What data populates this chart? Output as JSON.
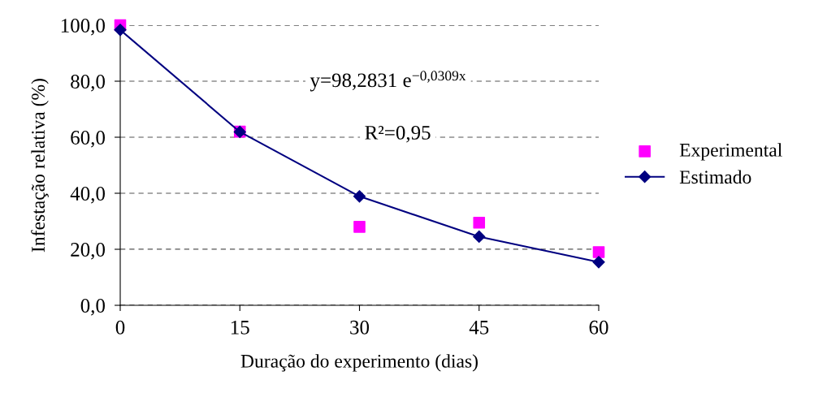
{
  "chart_data": {
    "type": "scatter",
    "xlabel": "Duração do experimento (dias)",
    "ylabel": "Infestação relativa (%)",
    "x": [
      0,
      15,
      30,
      45,
      60
    ],
    "series": [
      {
        "name": "Experimental",
        "color": "#ff00ff",
        "marker": "square",
        "values": [
          100,
          62,
          28,
          29.5,
          19
        ]
      },
      {
        "name": "Estimado",
        "type": "line",
        "color": "#000080",
        "marker": "diamond",
        "line_style": "solid",
        "values": [
          98.3,
          61.9,
          38.9,
          24.5,
          15.4
        ]
      }
    ],
    "xlim": [
      0,
      60
    ],
    "xticks": [
      0,
      15,
      30,
      45,
      60
    ],
    "ylim": [
      0,
      100
    ],
    "yticks": [
      {
        "value": 0,
        "label": "0,0"
      },
      {
        "value": 20,
        "label": "20,0"
      },
      {
        "value": 40,
        "label": "40,0"
      },
      {
        "value": 60,
        "label": "60,0"
      },
      {
        "value": 80,
        "label": "80,0"
      },
      {
        "value": 100,
        "label": "100,0"
      }
    ],
    "grid": "y",
    "legend": "right",
    "annotations": [
      "y=98,2831 e$^{−0,0309x}$",
      "R²=0,95"
    ]
  }
}
